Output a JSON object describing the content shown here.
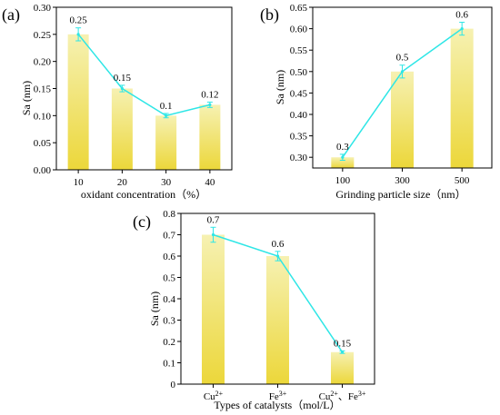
{
  "colors": {
    "bar_top": "#f6f1b2",
    "bar_bottom": "#ecd73a",
    "line": "#2ee6e6",
    "error": "#2ee6e6",
    "axis": "#000000"
  },
  "chart_data": [
    {
      "panel_label": "(a)",
      "type": "bar",
      "overlay": "line",
      "xlabel": "oxidant concentration（%）",
      "ylabel": "Sa (nm)",
      "categories": [
        "10",
        "20",
        "30",
        "40"
      ],
      "values": [
        0.25,
        0.15,
        0.1,
        0.12
      ],
      "data_labels": [
        "0.25",
        "0.15",
        "0.1",
        "0.12"
      ],
      "errors": [
        0.012,
        0.006,
        0.004,
        0.005
      ],
      "ylim": [
        0,
        0.3
      ],
      "yticks": [
        0,
        0.05,
        0.1,
        0.15,
        0.2,
        0.25,
        0.3
      ],
      "ytick_labels": [
        "0.00",
        "0.05",
        "0.10",
        "0.15",
        "0.20",
        "0.25",
        "0.30"
      ]
    },
    {
      "panel_label": "(b)",
      "type": "bar",
      "overlay": "line",
      "xlabel": "Grinding particle size（nm）",
      "ylabel": "Sa (nm)",
      "categories": [
        "100",
        "300",
        "500"
      ],
      "values": [
        0.3,
        0.5,
        0.6
      ],
      "data_labels": [
        "0.3",
        "0.5",
        "0.6"
      ],
      "errors": [
        0.007,
        0.015,
        0.015
      ],
      "ylim": [
        0.275,
        0.65
      ],
      "yticks": [
        0.3,
        0.35,
        0.4,
        0.45,
        0.5,
        0.55,
        0.6,
        0.65
      ],
      "ytick_labels": [
        "0.30",
        "0.35",
        "0.40",
        "0.45",
        "0.50",
        "0.55",
        "0.60",
        "0.65"
      ]
    },
    {
      "panel_label": "(c)",
      "type": "bar",
      "overlay": "line",
      "xlabel": "Types of catalysts（mol/L）",
      "ylabel": "Sa (nm)",
      "categories": [
        "Cu²⁺",
        "Fe³⁺",
        "Cu²⁺、Fe³⁺"
      ],
      "values": [
        0.7,
        0.6,
        0.15
      ],
      "data_labels": [
        "0.7",
        "0.6",
        "0.15"
      ],
      "errors": [
        0.035,
        0.022,
        0.006
      ],
      "ylim": [
        0,
        0.8
      ],
      "yticks": [
        0,
        0.1,
        0.2,
        0.3,
        0.4,
        0.5,
        0.6,
        0.7,
        0.8
      ],
      "ytick_labels": [
        "0",
        "0.1",
        "0.2",
        "0.3",
        "0.4",
        "0.5",
        "0.6",
        "0.7",
        "0.8"
      ]
    }
  ]
}
